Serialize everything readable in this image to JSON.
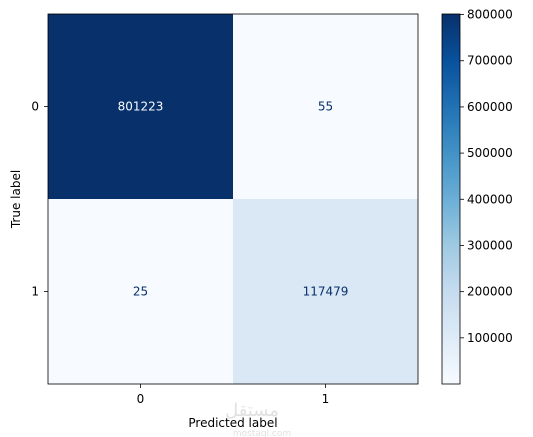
{
  "chart_data": {
    "type": "heatmap",
    "subtype": "confusion-matrix",
    "title": "",
    "xlabel": "Predicted label",
    "ylabel": "True label",
    "x_categories": [
      "0",
      "1"
    ],
    "y_categories": [
      "0",
      "1"
    ],
    "values": [
      [
        801223,
        55
      ],
      [
        25,
        117479
      ]
    ],
    "value_labels": [
      [
        "801223",
        "55"
      ],
      [
        "25",
        "117479"
      ]
    ],
    "colormap": "Blues",
    "colorbar": {
      "range": [
        25,
        801223
      ],
      "ticks": [
        100000,
        200000,
        300000,
        400000,
        500000,
        600000,
        700000,
        800000
      ],
      "tick_labels": [
        "100000",
        "200000",
        "300000",
        "400000",
        "500000",
        "600000",
        "700000",
        "800000"
      ]
    },
    "label_colors": {
      "on_dark": "#f7fbff",
      "on_light": "#08306b"
    },
    "grid": false
  },
  "watermark": {
    "main": "مستقل",
    "sub": "mostaql.com"
  }
}
